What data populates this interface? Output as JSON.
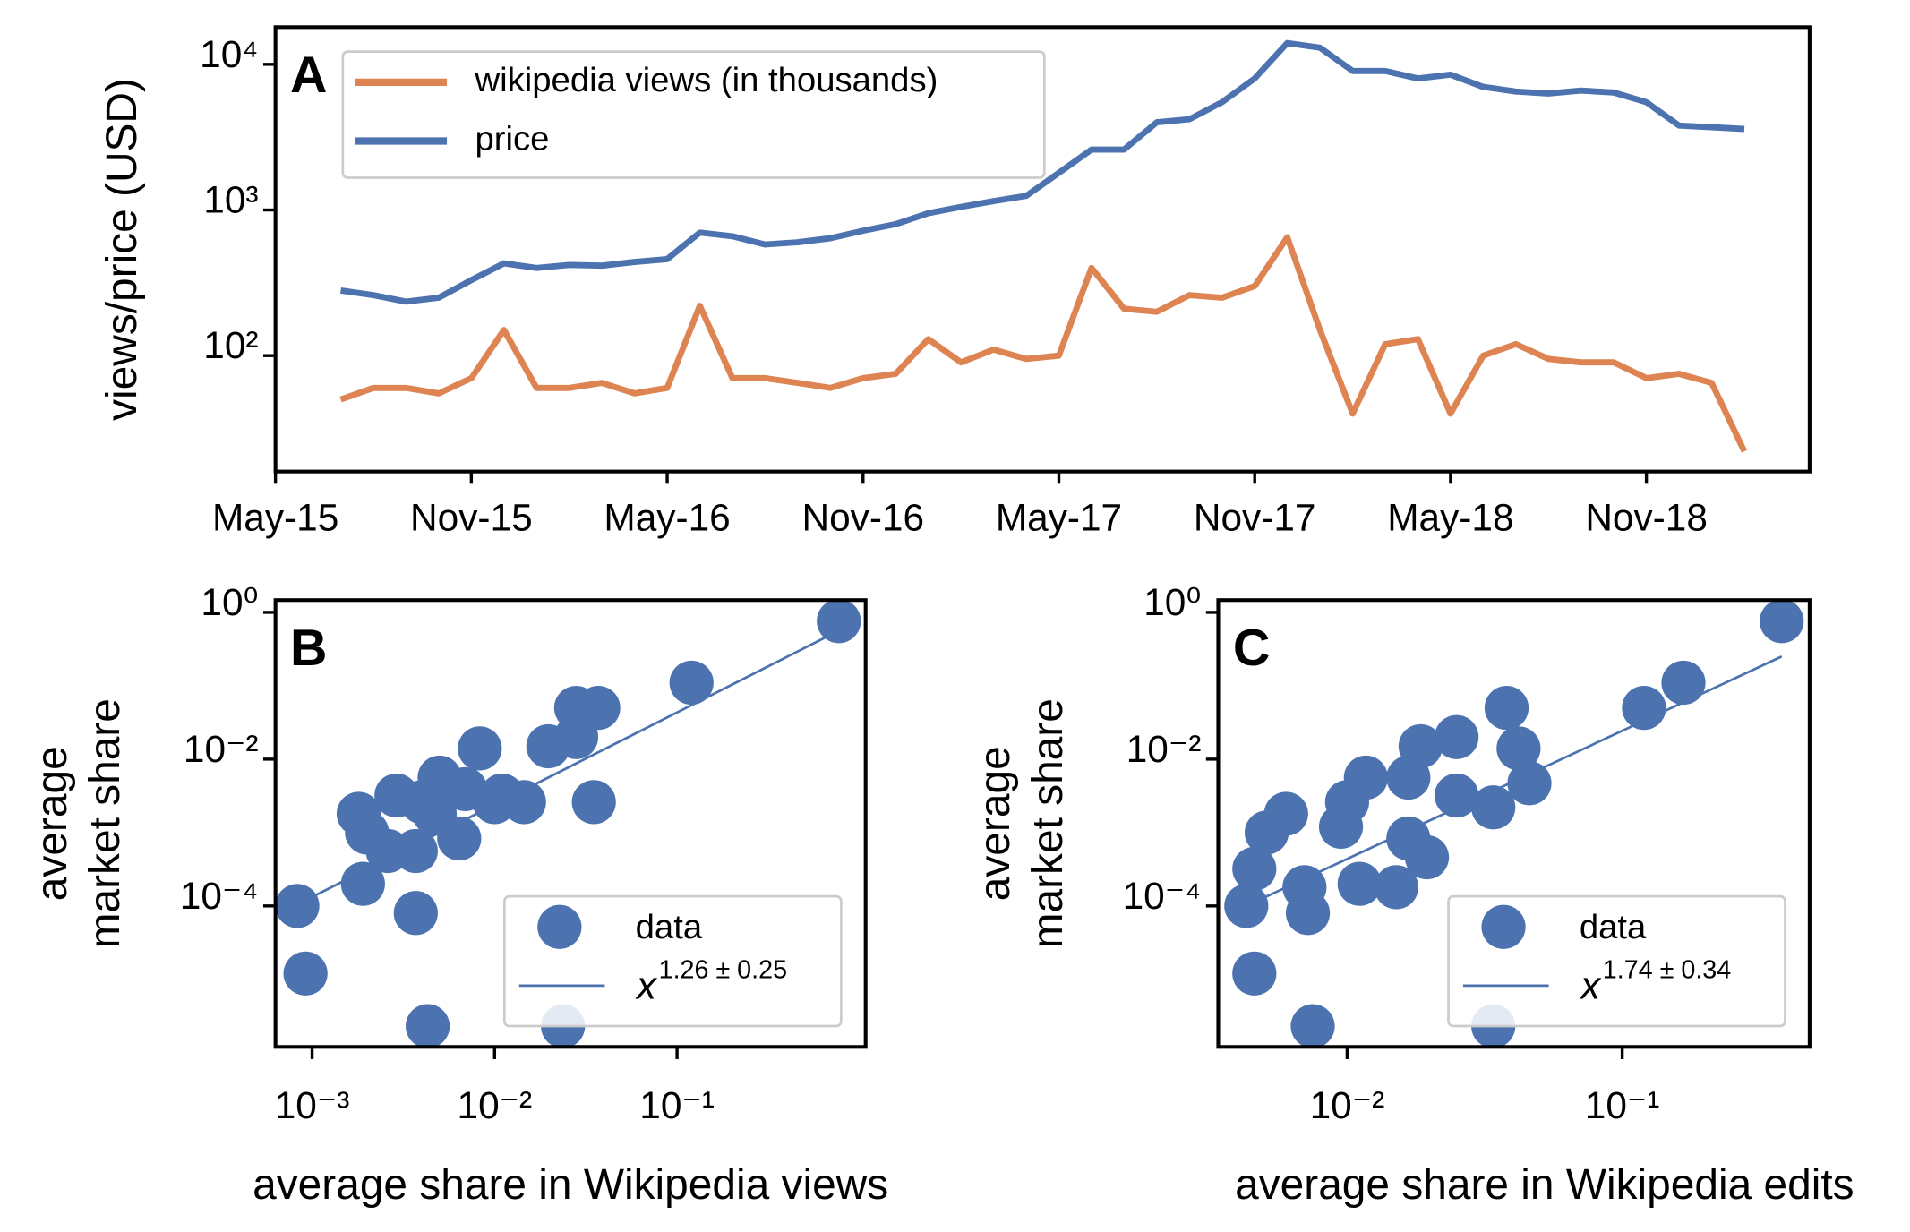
{
  "chart_data": [
    {
      "type": "line",
      "panel": "A",
      "ylabel": "views/price (USD)",
      "yscale": "log",
      "legend": "upper left",
      "x": [
        "2015-07",
        "2015-08",
        "2015-09",
        "2015-10",
        "2015-11",
        "2015-12",
        "2016-01",
        "2016-02",
        "2016-03",
        "2016-04",
        "2016-05",
        "2016-06",
        "2016-07",
        "2016-08",
        "2016-09",
        "2016-10",
        "2016-11",
        "2016-12",
        "2017-01",
        "2017-02",
        "2017-03",
        "2017-04",
        "2017-05",
        "2017-06",
        "2017-07",
        "2017-08",
        "2017-09",
        "2017-10",
        "2017-11",
        "2017-12",
        "2018-01",
        "2018-02",
        "2018-03",
        "2018-04",
        "2018-05",
        "2018-06",
        "2018-07",
        "2018-08",
        "2018-09",
        "2018-10",
        "2018-11",
        "2018-12",
        "2019-01",
        "2019-02"
      ],
      "series": [
        {
          "name": "wikipedia views (in thousands)",
          "color": "#dd8452",
          "values": [
            50,
            60,
            60,
            55,
            70,
            150,
            60,
            60,
            65,
            55,
            60,
            220,
            70,
            70,
            65,
            60,
            70,
            75,
            130,
            90,
            110,
            95,
            100,
            400,
            210,
            200,
            260,
            250,
            300,
            650,
            150,
            40,
            120,
            130,
            40,
            100,
            120,
            95,
            90,
            90,
            70,
            75,
            65,
            22
          ]
        },
        {
          "name": "price",
          "color": "#4c72b0",
          "values": [
            280,
            260,
            235,
            250,
            330,
            430,
            400,
            420,
            415,
            440,
            460,
            700,
            660,
            580,
            600,
            640,
            720,
            800,
            950,
            1050,
            1150,
            1250,
            1800,
            2600,
            2600,
            4000,
            4200,
            5500,
            8000,
            14000,
            13000,
            9000,
            9000,
            8000,
            8500,
            7000,
            6500,
            6300,
            6600,
            6400,
            5500,
            3800,
            3700,
            3600
          ]
        }
      ],
      "xlim": [
        "2015-05",
        "2019-04"
      ],
      "xticks": [
        {
          "value": "2015-05",
          "label": "May-15"
        },
        {
          "value": "2015-11",
          "label": "Nov-15"
        },
        {
          "value": "2016-05",
          "label": "May-16"
        },
        {
          "value": "2016-11",
          "label": "Nov-16"
        },
        {
          "value": "2017-05",
          "label": "May-17"
        },
        {
          "value": "2017-11",
          "label": "Nov-17"
        },
        {
          "value": "2018-05",
          "label": "May-18"
        },
        {
          "value": "2018-11",
          "label": "Nov-18"
        }
      ],
      "ylim": [
        16,
        18000
      ],
      "yticks": [
        {
          "value": 100,
          "label": "10²"
        },
        {
          "value": 1000,
          "label": "10³"
        },
        {
          "value": 10000,
          "label": "10⁴"
        }
      ]
    },
    {
      "type": "scatter",
      "panel": "B",
      "xlabel": "average share in Wikipedia views",
      "ylabel": [
        "average",
        "market share"
      ],
      "xscale": "log",
      "yscale": "log",
      "legend": "lower right",
      "series": [
        {
          "name": "data",
          "color": "#4c72b0",
          "x": [
            0.77,
            0.12,
            0.037,
            0.028,
            0.028,
            0.0197,
            0.0083,
            0.005,
            0.004,
            0.035,
            0.0145,
            0.01,
            0.0069,
            0.0029,
            0.0018,
            0.002,
            0.0026,
            0.0064,
            0.0037,
            0.0019,
            0.0037,
            0.00083,
            0.00092,
            0.0043,
            0.0237,
            0.011,
            0.0047
          ],
          "y": [
            0.76,
            0.11,
            0.05,
            0.05,
            0.02,
            0.015,
            0.014,
            0.0056,
            0.0026,
            0.0026,
            0.0026,
            0.0026,
            0.0039,
            0.0032,
            0.0018,
            0.001,
            0.00056,
            0.00083,
            0.00056,
            0.0002,
            8e-05,
            0.0001,
            1.2e-05,
            2.3e-06,
            2.3e-06,
            0.0032,
            0.0018
          ]
        }
      ],
      "fit": {
        "name": "x",
        "exponent": "1.26 ± 0.25",
        "color": "#4c72b0",
        "x": [
          0.0008,
          0.7
        ],
        "y": [
          0.0001,
          0.5
        ]
      },
      "xlim": [
        0.00063,
        1.08
      ],
      "ylim": [
        1.2e-06,
        1.47
      ],
      "xticks": [
        {
          "value": 0.001,
          "label": "10⁻³"
        },
        {
          "value": 0.01,
          "label": "10⁻²"
        },
        {
          "value": 0.1,
          "label": "10⁻¹"
        }
      ],
      "yticks": [
        {
          "value": 0.0001,
          "label": "10⁻⁴"
        },
        {
          "value": 0.01,
          "label": "10⁻²"
        },
        {
          "value": 1,
          "label": "10⁰"
        }
      ]
    },
    {
      "type": "scatter",
      "panel": "C",
      "xlabel": "average share in Wikipedia edits",
      "ylabel": [
        "average",
        "market share"
      ],
      "xscale": "log",
      "yscale": "log",
      "legend": "lower right",
      "series": [
        {
          "name": "data",
          "color": "#4c72b0",
          "x": [
            0.38,
            0.167,
            0.12,
            0.038,
            0.025,
            0.0185,
            0.042,
            0.0117,
            0.0167,
            0.025,
            0.034,
            0.046,
            0.01,
            0.006,
            0.0051,
            0.0095,
            0.0167,
            0.0195,
            0.0046,
            0.007,
            0.0111,
            0.0151,
            0.0043,
            0.0072,
            0.0046,
            0.0075,
            0.034
          ],
          "y": [
            0.76,
            0.11,
            0.05,
            0.05,
            0.02,
            0.015,
            0.014,
            0.0056,
            0.0056,
            0.0032,
            0.0022,
            0.0047,
            0.0026,
            0.0018,
            0.001,
            0.0012,
            0.00083,
            0.00046,
            0.00032,
            0.00018,
            0.0002,
            0.00018,
            0.0001,
            8e-05,
            1.2e-05,
            2.3e-06,
            2.3e-06
          ]
        }
      ],
      "fit": {
        "name": "x",
        "exponent": "1.74 ± 0.34",
        "color": "#4c72b0",
        "x": [
          0.0043,
          0.38
        ],
        "y": [
          0.0001,
          0.25
        ]
      },
      "xlim": [
        0.0034,
        0.48
      ],
      "ylim": [
        1.2e-06,
        1.47
      ],
      "xticks": [
        {
          "value": 0.01,
          "label": "10⁻²"
        },
        {
          "value": 0.1,
          "label": "10⁻¹"
        }
      ],
      "yticks": [
        {
          "value": 0.0001,
          "label": "10⁻⁴"
        },
        {
          "value": 0.01,
          "label": "10⁻²"
        },
        {
          "value": 1,
          "label": "10⁰"
        }
      ]
    }
  ]
}
